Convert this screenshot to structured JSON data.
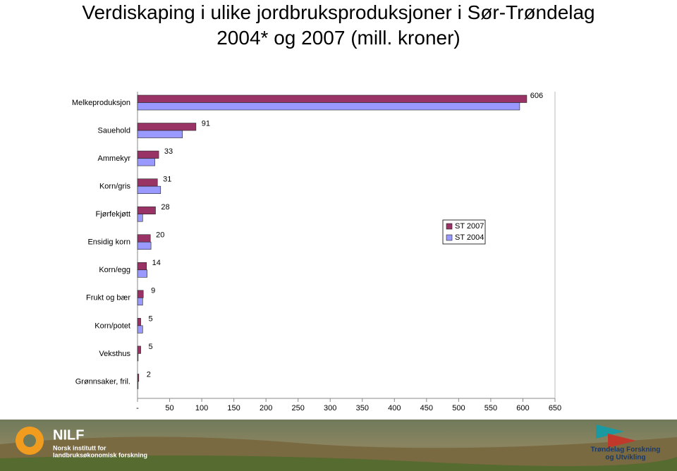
{
  "chart_data": {
    "type": "barh",
    "title": "Verdiskaping i ulike jordbruksproduksjoner i Sør-Trøndelag 2004* og 2007 (mill. kroner)",
    "categories": [
      "Melkeproduksjon",
      "Sauehold",
      "Ammekyr",
      "Korn/gris",
      "Fjørfekjøtt",
      "Ensidig korn",
      "Korn/egg",
      "Frukt og bær",
      "Korn/potet",
      "Veksthus",
      "Grønnsaker, fril."
    ],
    "series": [
      {
        "name": "ST 2007",
        "color": "#993366",
        "values": [
          606,
          91,
          33,
          31,
          28,
          20,
          14,
          9,
          5,
          5,
          2
        ]
      },
      {
        "name": "ST 2004",
        "color": "#9999ff",
        "values": [
          595,
          70,
          27,
          36,
          8,
          21,
          15,
          8,
          8,
          1,
          1
        ]
      }
    ],
    "xlim": [
      0,
      650
    ],
    "xticks": [
      {
        "value": 0,
        "label": "-"
      },
      50,
      100,
      150,
      200,
      250,
      300,
      350,
      400,
      450,
      500,
      550,
      600,
      650
    ],
    "legend": "right"
  },
  "footer": {
    "left_name": "NILF",
    "left_sub1": "Norsk institutt for",
    "left_sub2": "landbruksøkonomisk forskning",
    "right_name1": "Trøndelag Forskning",
    "right_name2": "og Utvikling"
  }
}
